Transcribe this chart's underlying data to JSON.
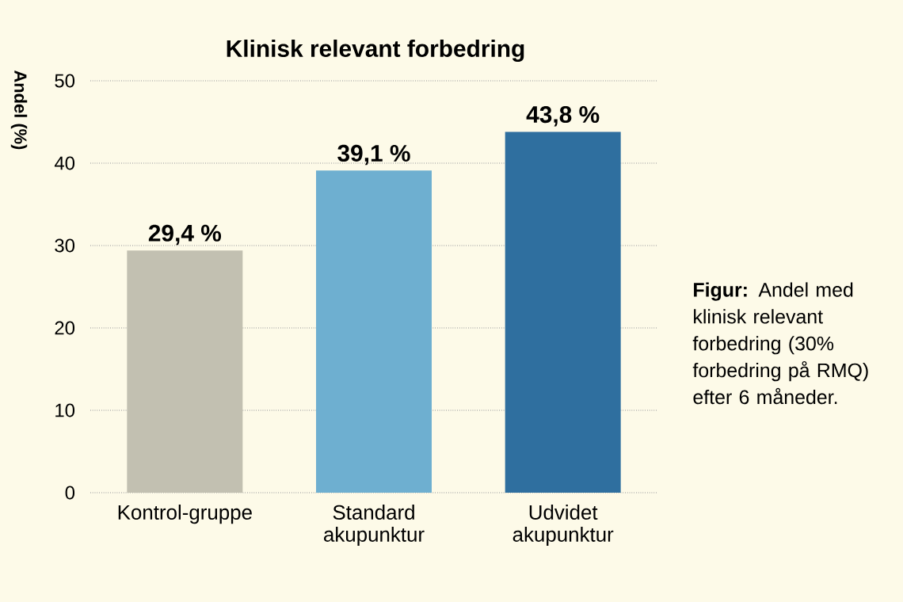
{
  "chart_data": {
    "type": "bar",
    "title": "Klinisk relevant forbedring",
    "ylabel": "Andel (%)",
    "categories": [
      "Kontrol-gruppe",
      "Standard akupunktur",
      "Udvidet akupunktur"
    ],
    "values": [
      29.4,
      39.1,
      43.8
    ],
    "value_labels": [
      "29,4 %",
      "39,1 %",
      "43,8 %"
    ],
    "colors": [
      "#c2c0b1",
      "#6eafd0",
      "#2f6f9f"
    ],
    "ylim": [
      0,
      50
    ],
    "yticks": [
      0,
      10,
      20,
      30,
      40,
      50
    ],
    "grid": "y",
    "annotations": [
      "**Figur:** Andel med klinisk relevant forbedring (30% forbedring på RMQ) efter 6 måneder."
    ]
  }
}
